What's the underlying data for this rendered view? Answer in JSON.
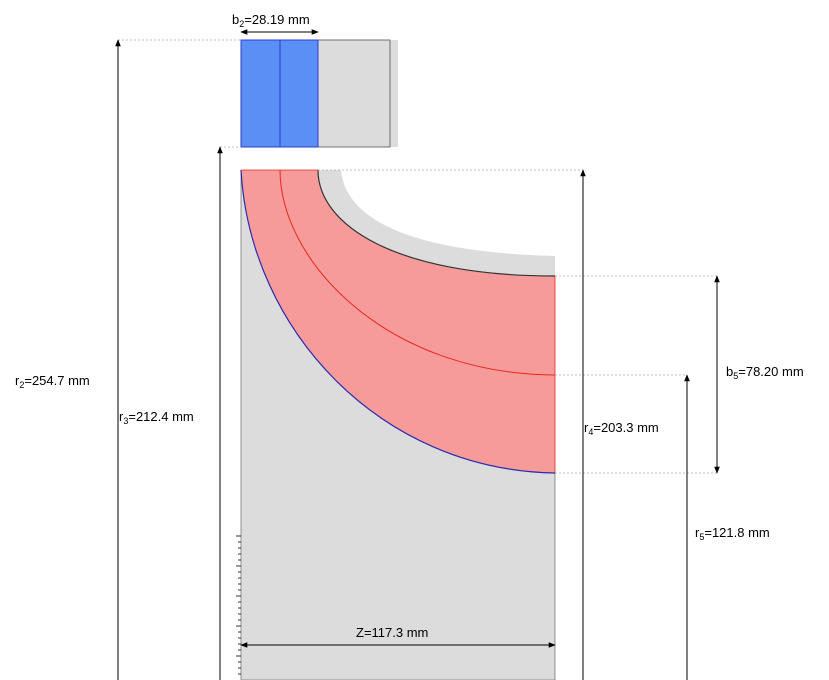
{
  "labels": {
    "b2": {
      "sym": "b",
      "sub": "2",
      "val": "=28.19 mm"
    },
    "r2": {
      "sym": "r",
      "sub": "2",
      "val": "=254.7 mm"
    },
    "r3": {
      "sym": "r",
      "sub": "3",
      "val": "=212.4 mm"
    },
    "r4": {
      "sym": "r",
      "sub": "4",
      "val": "=203.3 mm"
    },
    "b5": {
      "sym": "b",
      "sub": "5",
      "val": "=78.20 mm"
    },
    "r5": {
      "sym": "r",
      "sub": "5",
      "val": "=121.8 mm"
    },
    "z": {
      "text": "Z=117.3 mm"
    }
  },
  "colors": {
    "stator_blade": "#5b8ff5",
    "stator_edge": "#2a3fc9",
    "rotor_fill": "#f79a9a",
    "rotor_line": "#e8281f",
    "hub_line": "#2b2bb0",
    "housing": "#dcdcdc",
    "guide": "#aaaaaa"
  }
}
